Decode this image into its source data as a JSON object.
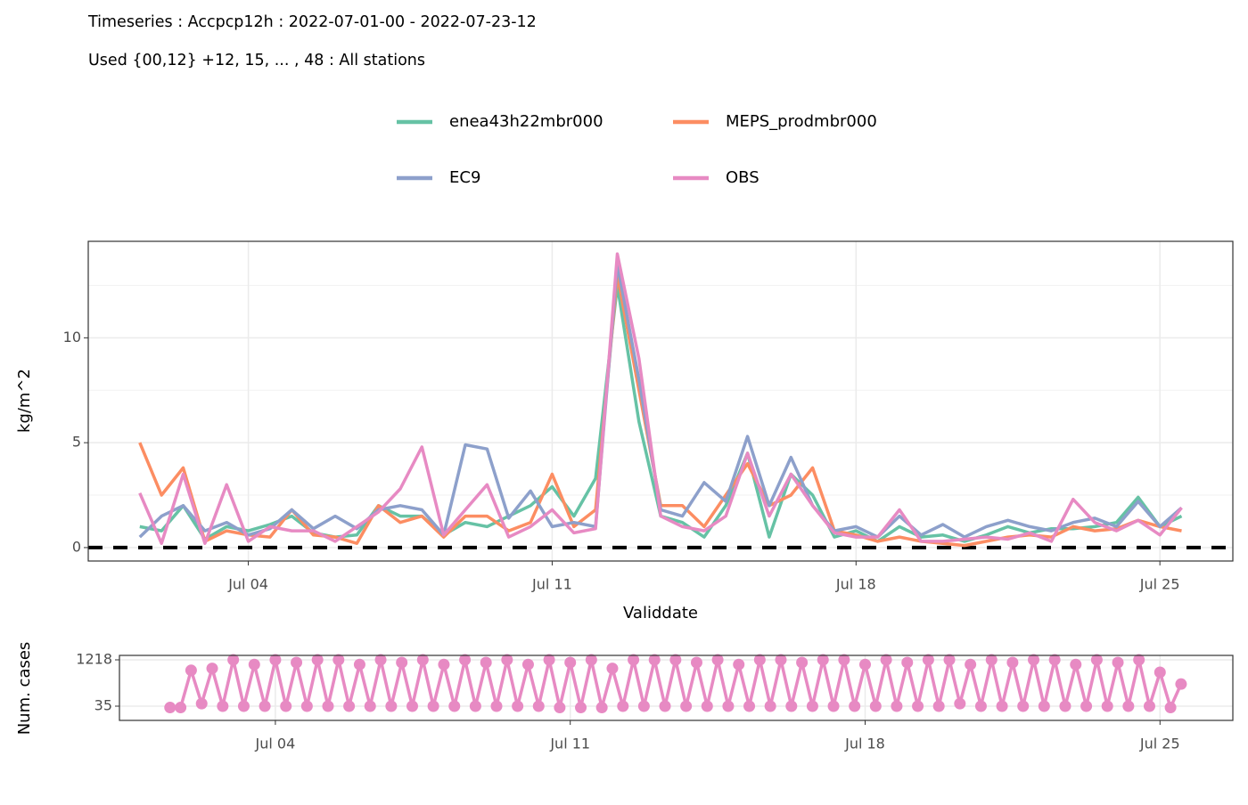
{
  "chart_data": [
    {
      "type": "line",
      "title": "Timeseries : Accpcp12h : 2022-07-01-00 - 2022-07-23-12",
      "subtitle": "Used {00,12} +12, 15, ... , 48 : All stations",
      "x_label": "Validdate",
      "y_label": "kg/m^2",
      "x": [
        "2022-07-01T12:00",
        "2022-07-02T00:00",
        "2022-07-02T12:00",
        "2022-07-03T00:00",
        "2022-07-03T12:00",
        "2022-07-04T00:00",
        "2022-07-04T12:00",
        "2022-07-05T00:00",
        "2022-07-05T12:00",
        "2022-07-06T00:00",
        "2022-07-06T12:00",
        "2022-07-07T00:00",
        "2022-07-07T12:00",
        "2022-07-08T00:00",
        "2022-07-08T12:00",
        "2022-07-09T00:00",
        "2022-07-09T12:00",
        "2022-07-10T00:00",
        "2022-07-10T12:00",
        "2022-07-11T00:00",
        "2022-07-11T12:00",
        "2022-07-12T00:00",
        "2022-07-12T12:00",
        "2022-07-13T00:00",
        "2022-07-13T12:00",
        "2022-07-14T00:00",
        "2022-07-14T12:00",
        "2022-07-15T00:00",
        "2022-07-15T12:00",
        "2022-07-16T00:00",
        "2022-07-16T12:00",
        "2022-07-17T00:00",
        "2022-07-17T12:00",
        "2022-07-18T00:00",
        "2022-07-18T12:00",
        "2022-07-19T00:00",
        "2022-07-19T12:00",
        "2022-07-20T00:00",
        "2022-07-20T12:00",
        "2022-07-21T00:00",
        "2022-07-21T12:00",
        "2022-07-22T00:00",
        "2022-07-22T12:00",
        "2022-07-23T00:00",
        "2022-07-23T12:00",
        "2022-07-24T00:00",
        "2022-07-24T12:00",
        "2022-07-25T00:00",
        "2022-07-25T12:00"
      ],
      "series": [
        {
          "name": "enea43h22mbr000",
          "color": "#66c2a5",
          "values": [
            1.0,
            0.8,
            2.0,
            0.4,
            1.0,
            0.8,
            1.1,
            1.5,
            0.7,
            0.5,
            0.6,
            2.0,
            1.5,
            1.5,
            0.6,
            1.2,
            1.0,
            1.5,
            2.0,
            2.9,
            1.5,
            3.3,
            12.5,
            6.0,
            1.5,
            1.2,
            0.5,
            2.0,
            4.5,
            0.5,
            3.5,
            2.5,
            0.5,
            0.8,
            0.3,
            1.0,
            0.5,
            0.6,
            0.3,
            0.6,
            1.0,
            0.7,
            0.9,
            0.9,
            1.0,
            1.2,
            2.4,
            1.0,
            1.5
          ]
        },
        {
          "name": "MEPS_prodmbr000",
          "color": "#fc8d62",
          "values": [
            5.0,
            2.5,
            3.8,
            0.3,
            0.8,
            0.6,
            0.5,
            1.8,
            0.6,
            0.5,
            0.2,
            2.0,
            1.2,
            1.5,
            0.5,
            1.5,
            1.5,
            0.8,
            1.2,
            3.5,
            1.0,
            1.8,
            13.0,
            7.5,
            2.0,
            2.0,
            1.0,
            2.5,
            4.0,
            2.0,
            2.5,
            3.8,
            0.8,
            0.6,
            0.3,
            0.5,
            0.3,
            0.2,
            0.1,
            0.3,
            0.5,
            0.6,
            0.5,
            1.0,
            0.8,
            0.9,
            1.3,
            1.0,
            0.8
          ]
        },
        {
          "name": "EC9",
          "color": "#8da0cb",
          "values": [
            0.5,
            1.5,
            2.0,
            0.8,
            1.2,
            0.6,
            0.9,
            1.8,
            0.9,
            1.5,
            0.9,
            1.8,
            2.0,
            1.8,
            0.6,
            4.9,
            4.7,
            1.4,
            2.7,
            1.0,
            1.2,
            1.0,
            13.5,
            8.0,
            1.8,
            1.5,
            3.1,
            2.2,
            5.3,
            2.0,
            4.3,
            2.0,
            0.8,
            1.0,
            0.5,
            1.5,
            0.6,
            1.1,
            0.5,
            1.0,
            1.3,
            1.0,
            0.8,
            1.2,
            1.4,
            1.0,
            2.2,
            1.0,
            1.9
          ]
        },
        {
          "name": "OBS",
          "color": "#e78ac3",
          "values": [
            2.6,
            0.2,
            3.5,
            0.2,
            3.0,
            0.3,
            1.0,
            0.8,
            0.8,
            0.3,
            1.0,
            1.7,
            2.8,
            4.8,
            0.6,
            1.8,
            3.0,
            0.5,
            1.0,
            1.8,
            0.7,
            0.9,
            14.0,
            9.0,
            1.5,
            1.0,
            0.8,
            1.5,
            4.5,
            1.5,
            3.5,
            2.0,
            0.7,
            0.5,
            0.5,
            1.8,
            0.3,
            0.3,
            0.4,
            0.5,
            0.4,
            0.7,
            0.3,
            2.3,
            1.2,
            0.8,
            1.3,
            0.6,
            1.9
          ]
        }
      ],
      "hline": 0,
      "xlim": [
        "2022-06-30T07:30",
        "2022-07-26T16:20"
      ],
      "xticks": [
        {
          "value": "2022-07-04T00:00",
          "label": "Jul 04"
        },
        {
          "value": "2022-07-11T00:00",
          "label": "Jul 11"
        },
        {
          "value": "2022-07-18T00:00",
          "label": "Jul 18"
        },
        {
          "value": "2022-07-25T00:00",
          "label": "Jul 25"
        }
      ],
      "ylim": [
        -0.64,
        14.6
      ],
      "yticks": [
        0,
        5,
        10
      ],
      "yminor": [
        2.5,
        7.5,
        12.5
      ],
      "grid": true,
      "legend": "top"
    },
    {
      "type": "line",
      "markers": true,
      "y_label": "Num. cases",
      "color": "#e78ac3",
      "x": [
        "2022-07-01T12:00",
        "2022-07-01T18:00",
        "2022-07-02T00:00",
        "2022-07-02T06:00",
        "2022-07-02T12:00",
        "2022-07-02T18:00",
        "2022-07-03T00:00",
        "2022-07-03T06:00",
        "2022-07-03T12:00",
        "2022-07-03T18:00",
        "2022-07-04T00:00",
        "2022-07-04T06:00",
        "2022-07-04T12:00",
        "2022-07-04T18:00",
        "2022-07-05T00:00",
        "2022-07-05T06:00",
        "2022-07-05T12:00",
        "2022-07-05T18:00",
        "2022-07-06T00:00",
        "2022-07-06T06:00",
        "2022-07-06T12:00",
        "2022-07-06T18:00",
        "2022-07-07T00:00",
        "2022-07-07T06:00",
        "2022-07-07T12:00",
        "2022-07-07T18:00",
        "2022-07-08T00:00",
        "2022-07-08T06:00",
        "2022-07-08T12:00",
        "2022-07-08T18:00",
        "2022-07-09T00:00",
        "2022-07-09T06:00",
        "2022-07-09T12:00",
        "2022-07-09T18:00",
        "2022-07-10T00:00",
        "2022-07-10T06:00",
        "2022-07-10T12:00",
        "2022-07-10T18:00",
        "2022-07-11T00:00",
        "2022-07-11T06:00",
        "2022-07-11T12:00",
        "2022-07-11T18:00",
        "2022-07-12T00:00",
        "2022-07-12T06:00",
        "2022-07-12T12:00",
        "2022-07-12T18:00",
        "2022-07-13T00:00",
        "2022-07-13T06:00",
        "2022-07-13T12:00",
        "2022-07-13T18:00",
        "2022-07-14T00:00",
        "2022-07-14T06:00",
        "2022-07-14T12:00",
        "2022-07-14T18:00",
        "2022-07-15T00:00",
        "2022-07-15T06:00",
        "2022-07-15T12:00",
        "2022-07-15T18:00",
        "2022-07-16T00:00",
        "2022-07-16T06:00",
        "2022-07-16T12:00",
        "2022-07-16T18:00",
        "2022-07-17T00:00",
        "2022-07-17T06:00",
        "2022-07-17T12:00",
        "2022-07-17T18:00",
        "2022-07-18T00:00",
        "2022-07-18T06:00",
        "2022-07-18T12:00",
        "2022-07-18T18:00",
        "2022-07-19T00:00",
        "2022-07-19T06:00",
        "2022-07-19T12:00",
        "2022-07-19T18:00",
        "2022-07-20T00:00",
        "2022-07-20T06:00",
        "2022-07-20T12:00",
        "2022-07-20T18:00",
        "2022-07-21T00:00",
        "2022-07-21T06:00",
        "2022-07-21T12:00",
        "2022-07-21T18:00",
        "2022-07-22T00:00",
        "2022-07-22T06:00",
        "2022-07-22T12:00",
        "2022-07-22T18:00",
        "2022-07-23T00:00",
        "2022-07-23T06:00",
        "2022-07-23T12:00",
        "2022-07-23T18:00",
        "2022-07-24T00:00",
        "2022-07-24T06:00",
        "2022-07-24T12:00",
        "2022-07-24T18:00",
        "2022-07-25T00:00",
        "2022-07-25T06:00",
        "2022-07-25T12:00"
      ],
      "values": [
        0,
        0,
        950,
        100,
        1000,
        35,
        1218,
        35,
        1100,
        35,
        1218,
        35,
        1150,
        35,
        1218,
        35,
        1218,
        35,
        1100,
        35,
        1218,
        35,
        1150,
        35,
        1218,
        35,
        1100,
        35,
        1218,
        35,
        1150,
        35,
        1218,
        35,
        1100,
        35,
        1218,
        0,
        1150,
        0,
        1218,
        0,
        1000,
        35,
        1218,
        35,
        1218,
        35,
        1218,
        35,
        1150,
        35,
        1218,
        35,
        1100,
        35,
        1218,
        35,
        1218,
        35,
        1150,
        35,
        1218,
        35,
        1218,
        35,
        1100,
        35,
        1218,
        35,
        1150,
        35,
        1218,
        35,
        1218,
        100,
        1100,
        35,
        1218,
        35,
        1150,
        35,
        1218,
        35,
        1218,
        35,
        1100,
        35,
        1218,
        35,
        1150,
        35,
        1218,
        35,
        900,
        0,
        600
      ],
      "xlim": [
        "2022-06-30T07:10",
        "2022-07-26T17:30"
      ],
      "xticks": [
        {
          "value": "2022-07-04T00:00",
          "label": "Jul 04"
        },
        {
          "value": "2022-07-11T00:00",
          "label": "Jul 11"
        },
        {
          "value": "2022-07-18T00:00",
          "label": "Jul 18"
        },
        {
          "value": "2022-07-25T00:00",
          "label": "Jul 25"
        }
      ],
      "ylim": [
        -329,
        1332
      ],
      "yticks": [
        35,
        1218
      ],
      "grid": true
    }
  ]
}
